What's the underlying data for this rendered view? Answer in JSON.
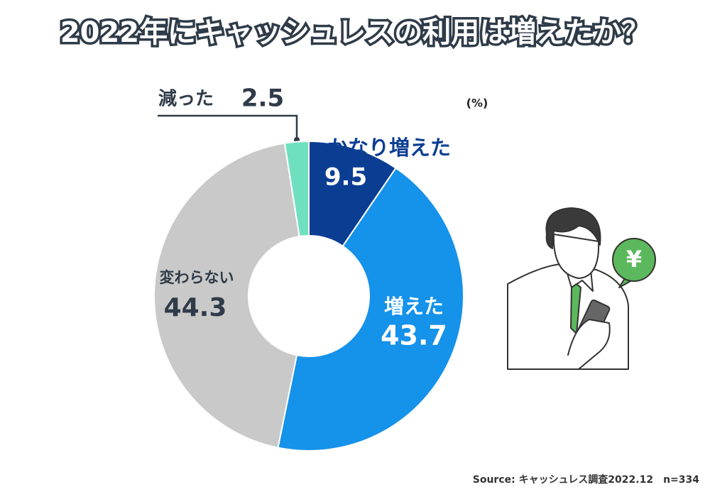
{
  "chart_data": {
    "type": "donut",
    "title": "2022年にキャッシュレスの利用は増えたか？",
    "unit": "(%)",
    "categories": [
      "かなり増えた",
      "増えた",
      "変わらない",
      "減った"
    ],
    "values": [
      9.5,
      43.7,
      44.3,
      2.5
    ],
    "colors": [
      "#0b3e93",
      "#1592ea",
      "#c9c9c9",
      "#6fe0bf"
    ],
    "badge": "¥",
    "source": "Source: キャッシュレス調査2022.12　n=334"
  }
}
